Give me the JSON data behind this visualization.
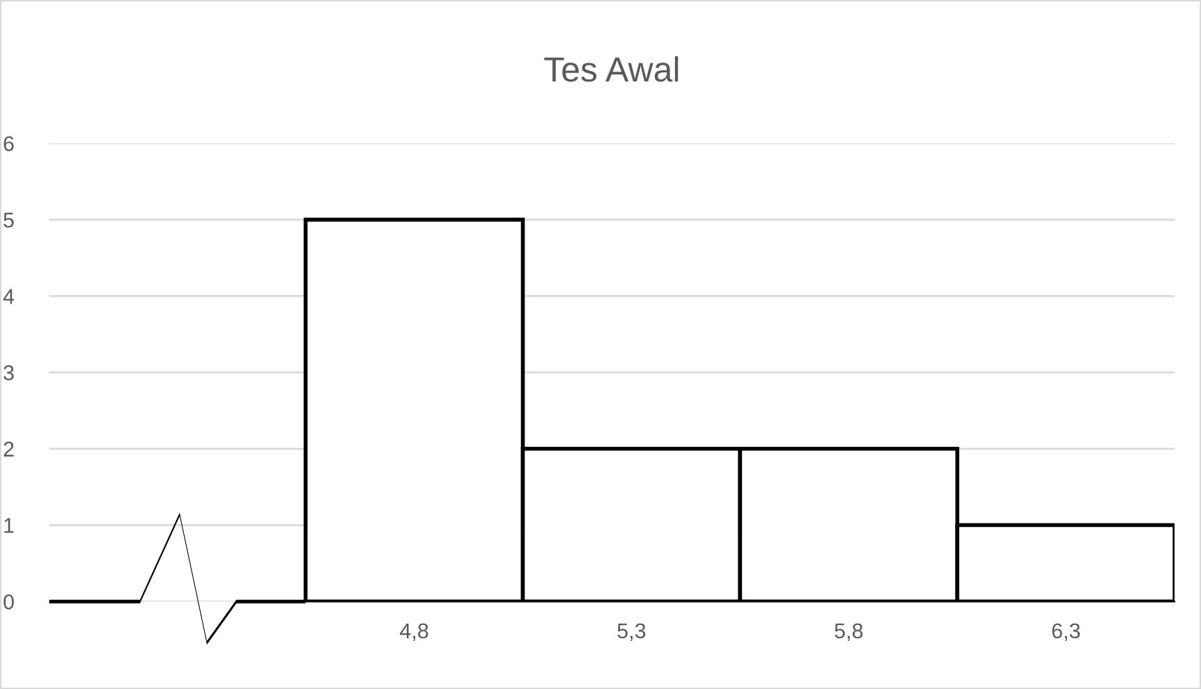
{
  "chart_data": {
    "type": "histogram",
    "title": "Tes Awal",
    "bins": [
      4.55,
      5.05,
      5.55,
      6.05,
      6.55
    ],
    "values": [
      5,
      2,
      2,
      1
    ],
    "color": "#ffffff",
    "xlim": [
      3.96,
      6.55
    ],
    "xticks": [
      {
        "value": 4.8,
        "label": "4,8"
      },
      {
        "value": 5.3,
        "label": "5,3"
      },
      {
        "value": 5.8,
        "label": "5,8"
      },
      {
        "value": 6.3,
        "label": "6,3"
      }
    ],
    "ylim": [
      0,
      6
    ],
    "yticks": [
      0,
      1,
      2,
      3,
      4,
      5,
      6
    ],
    "grid": "y",
    "legend": false
  }
}
